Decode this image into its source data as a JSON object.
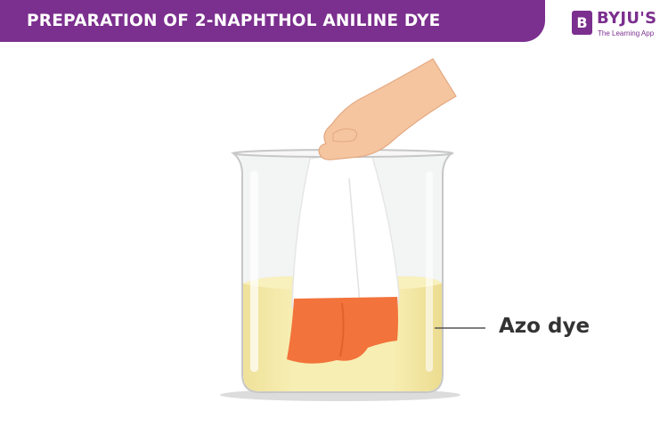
{
  "header": {
    "title": "PREPARATION OF 2-NAPHTHOL ANILINE DYE",
    "brand_color": "#7b2f8e"
  },
  "logo": {
    "badge_letter": "B",
    "name": "BYJU'S",
    "tagline": "The Learning App"
  },
  "diagram": {
    "label": "Azo dye",
    "colors": {
      "solution": "#f6ecac",
      "dyed_cloth": "#f2733b",
      "white_cloth": "#ffffff",
      "skin": "#f5c5a0",
      "glass_edge": "#c7c7c7"
    }
  }
}
